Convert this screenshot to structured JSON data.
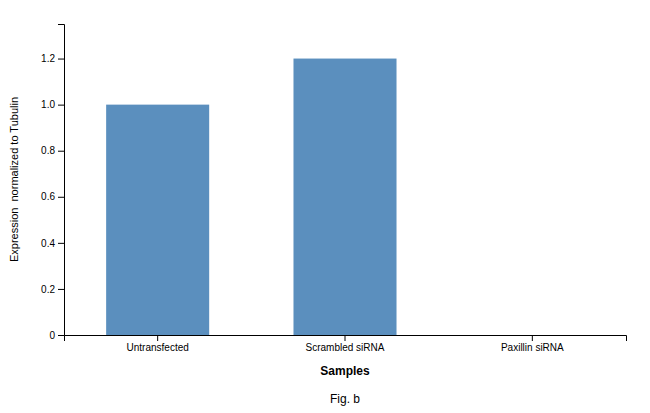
{
  "chart_data": {
    "type": "bar",
    "title": "Fig. b",
    "categories": [
      "Untransfected",
      "Scrambled siRNA",
      "Paxillin siRNA"
    ],
    "values": [
      1.0,
      1.2,
      0.0
    ],
    "color": "#5b8fbe",
    "xlabel": "Samples",
    "ylabel": "Expression  normalized to Tubulin",
    "ylim": [
      0,
      1.35
    ],
    "yticks": [
      0,
      0.2,
      0.4,
      0.6,
      0.8,
      {
        "value": 1.0,
        "label": "1.0"
      },
      1.2
    ],
    "grid": false
  }
}
